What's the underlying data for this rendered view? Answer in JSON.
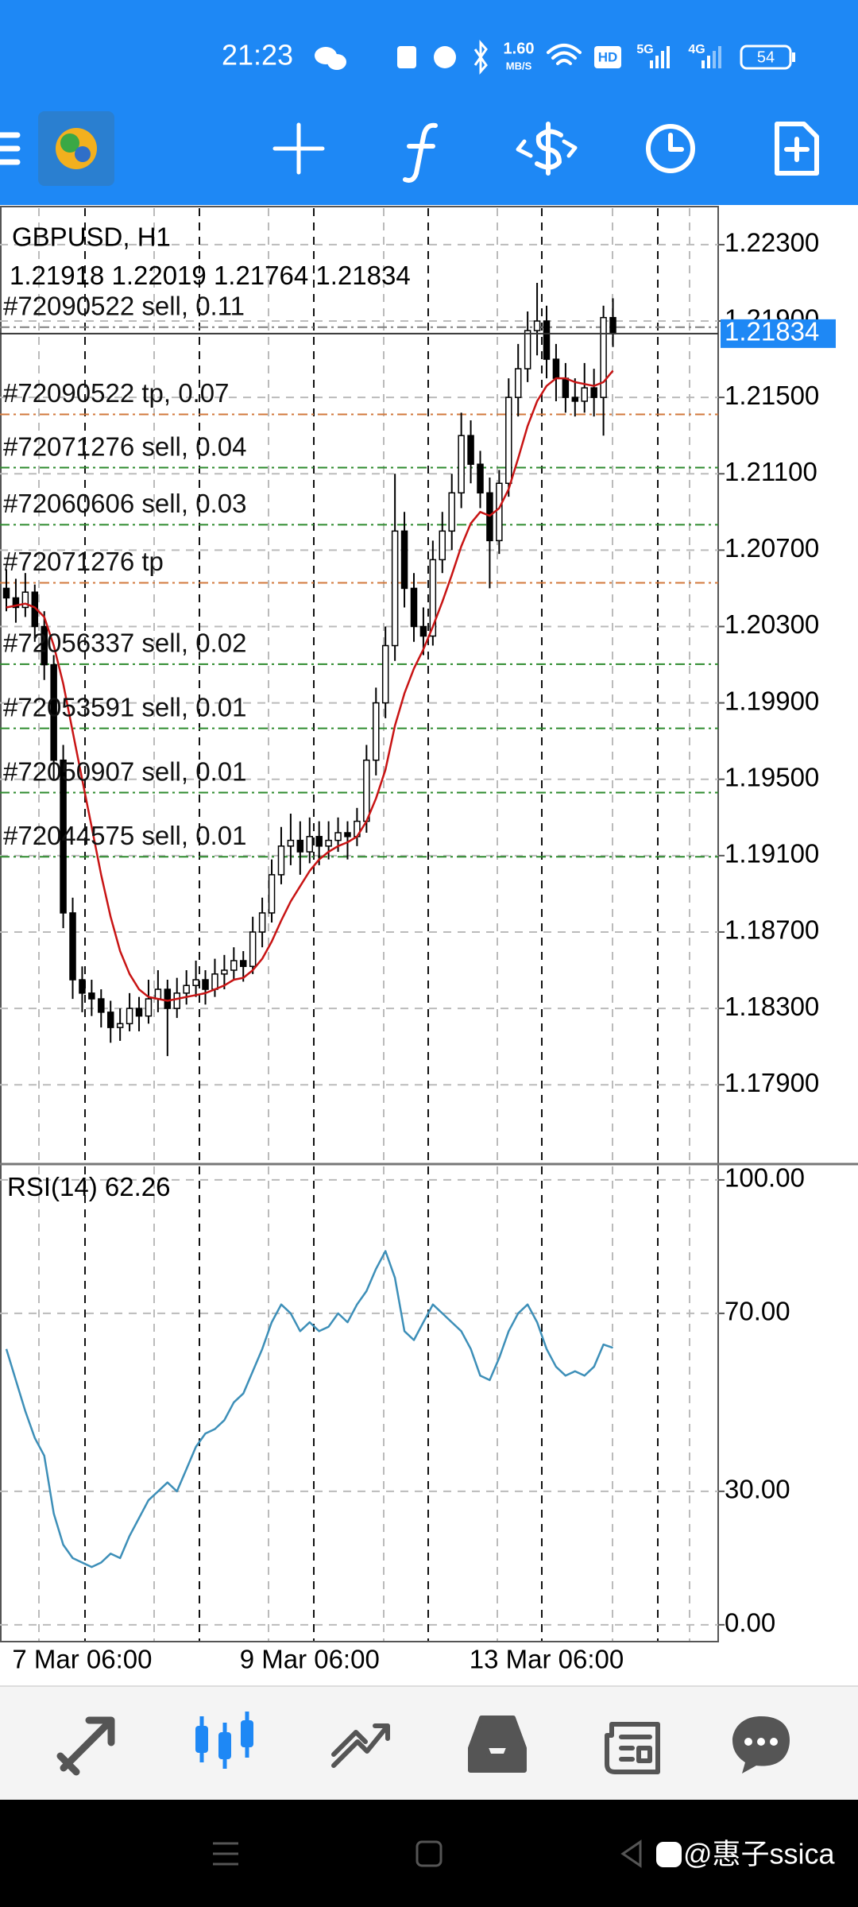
{
  "status_bar": {
    "time": "21:23",
    "network_speed": "1.60",
    "network_unit": "MB/S",
    "hd": "HD",
    "signal_1": "5G",
    "signal_2": "4G",
    "battery": "54"
  },
  "chart": {
    "type": "candlestick",
    "symbol": "GBPUSD, H1",
    "categories": [
      null,
      null,
      null,
      null,
      null,
      null,
      null,
      null,
      "7 Mar 06:00",
      null,
      null,
      null,
      null,
      null,
      null,
      null,
      null,
      null,
      null,
      null,
      null,
      null,
      null,
      null,
      null,
      null,
      null,
      null,
      null,
      null,
      null,
      null,
      "9 Mar 06:00",
      null,
      null,
      null,
      null,
      null,
      null,
      null,
      null,
      null,
      null,
      null,
      null,
      null,
      null,
      null,
      null,
      null,
      null,
      null,
      null,
      null,
      null,
      null,
      null,
      "13 Mar 06:00",
      null,
      null,
      null,
      null,
      null,
      null,
      null
    ],
    "candles": {
      "open": [
        1.205,
        1.2045,
        1.204,
        1.2048,
        1.203,
        1.201,
        1.196,
        1.188,
        1.1845,
        1.1838,
        1.1835,
        1.1828,
        1.182,
        1.1822,
        1.183,
        1.1826,
        1.1835,
        1.184,
        1.183,
        1.1838,
        1.1842,
        1.1845,
        1.184,
        1.1848,
        1.185,
        1.1855,
        1.1852,
        1.187,
        1.188,
        1.19,
        1.1915,
        1.1918,
        1.1912,
        1.192,
        1.1915,
        1.1918,
        1.1922,
        1.192,
        1.1928,
        1.196,
        1.199,
        1.202,
        1.208,
        1.205,
        1.203,
        1.2025,
        1.2065,
        1.208,
        1.21,
        1.213,
        1.2115,
        1.21,
        1.2075,
        1.2105,
        1.215,
        1.2165,
        1.2185,
        1.219,
        1.217,
        1.216,
        1.215,
        1.2148,
        1.2155,
        1.215,
        1.21918
      ],
      "high": [
        1.206,
        1.2055,
        1.2058,
        1.2052,
        1.2038,
        1.2015,
        1.1968,
        1.1888,
        1.1852,
        1.1845,
        1.184,
        1.1834,
        1.183,
        1.1838,
        1.1836,
        1.1845,
        1.185,
        1.1845,
        1.1846,
        1.185,
        1.1855,
        1.185,
        1.1856,
        1.1858,
        1.1862,
        1.186,
        1.1878,
        1.1888,
        1.1908,
        1.1925,
        1.1932,
        1.1928,
        1.193,
        1.1928,
        1.1928,
        1.193,
        1.1928,
        1.1935,
        1.1968,
        1.1998,
        1.203,
        1.211,
        1.209,
        1.2058,
        1.204,
        1.2075,
        1.209,
        1.211,
        1.2142,
        1.2138,
        1.2122,
        1.2108,
        1.2112,
        1.216,
        1.2178,
        1.2195,
        1.221,
        1.2198,
        1.2178,
        1.2168,
        1.216,
        1.2168,
        1.2165,
        1.2198,
        1.22019
      ],
      "low": [
        1.2038,
        1.2032,
        1.2035,
        1.2022,
        1.2002,
        1.195,
        1.1872,
        1.1835,
        1.1828,
        1.1826,
        1.182,
        1.1812,
        1.1813,
        1.1818,
        1.1818,
        1.1822,
        1.1828,
        1.1805,
        1.1825,
        1.1832,
        1.1836,
        1.1832,
        1.1836,
        1.184,
        1.1845,
        1.1844,
        1.1848,
        1.1862,
        1.1875,
        1.1895,
        1.1905,
        1.19,
        1.1906,
        1.1905,
        1.1908,
        1.1912,
        1.1908,
        1.1915,
        1.1922,
        1.1952,
        1.1982,
        1.2012,
        1.204,
        1.2022,
        1.2015,
        1.202,
        1.2058,
        1.207,
        1.2092,
        1.2105,
        1.2092,
        1.205,
        1.2068,
        1.2098,
        1.214,
        1.2158,
        1.2172,
        1.216,
        1.2148,
        1.2142,
        1.214,
        1.2142,
        1.214,
        1.213,
        1.21764
      ],
      "close": [
        1.2045,
        1.204,
        1.2048,
        1.203,
        1.201,
        1.196,
        1.188,
        1.1845,
        1.1838,
        1.1835,
        1.1828,
        1.182,
        1.1822,
        1.183,
        1.1826,
        1.1835,
        1.184,
        1.183,
        1.1838,
        1.1842,
        1.1845,
        1.184,
        1.1848,
        1.185,
        1.1855,
        1.1852,
        1.187,
        1.188,
        1.19,
        1.1915,
        1.1918,
        1.1912,
        1.192,
        1.1915,
        1.1918,
        1.1922,
        1.192,
        1.1928,
        1.196,
        1.199,
        1.202,
        1.208,
        1.205,
        1.203,
        1.2025,
        1.2065,
        1.208,
        1.21,
        1.213,
        1.2115,
        1.21,
        1.2075,
        1.2105,
        1.215,
        1.2165,
        1.2185,
        1.219,
        1.217,
        1.216,
        1.215,
        1.2148,
        1.2155,
        1.215,
        1.21918,
        1.21834
      ]
    },
    "up_color": "#ffffff",
    "down_color": "#000000",
    "ylim": [
      1.17493,
      1.22491
    ],
    "yticks": [
      {
        "value": 1.223,
        "label": "1.22300"
      },
      {
        "value": 1.219,
        "label": "1.21900"
      },
      {
        "value": 1.215,
        "label": "1.21500"
      },
      {
        "value": 1.211,
        "label": "1.21100"
      },
      {
        "value": 1.207,
        "label": "1.20700"
      },
      {
        "value": 1.203,
        "label": "1.20300"
      },
      {
        "value": 1.199,
        "label": "1.19900"
      },
      {
        "value": 1.195,
        "label": "1.19500"
      },
      {
        "value": 1.191,
        "label": "1.19100"
      },
      {
        "value": 1.187,
        "label": "1.18700"
      },
      {
        "value": 1.183,
        "label": "1.18300"
      },
      {
        "value": 1.179,
        "label": "1.17900"
      }
    ],
    "grid": true,
    "current_price_color": "#1e88f5",
    "moving_average": {
      "color": "#c81414",
      "values": [
        1.204,
        1.2041,
        1.2042,
        1.204,
        1.2035,
        1.202,
        1.2,
        1.1975,
        1.195,
        1.1925,
        1.19,
        1.1878,
        1.186,
        1.1848,
        1.184,
        1.1836,
        1.1835,
        1.1834,
        1.1835,
        1.1836,
        1.1837,
        1.1838,
        1.184,
        1.1842,
        1.1845,
        1.1846,
        1.185,
        1.1856,
        1.1865,
        1.1876,
        1.1886,
        1.1894,
        1.1902,
        1.1908,
        1.1912,
        1.1915,
        1.1917,
        1.192,
        1.1928,
        1.194,
        1.1955,
        1.1978,
        1.1995,
        1.2008,
        1.2018,
        1.203,
        1.2043,
        1.2057,
        1.2072,
        1.2084,
        1.209,
        1.2088,
        1.2092,
        1.2102,
        1.2118,
        1.2135,
        1.2148,
        1.2156,
        1.216,
        1.216,
        1.2158,
        1.2157,
        1.2156,
        1.2158,
        1.2164
      ]
    },
    "orders": [
      {
        "label": "#72090522 sell, 0.11",
        "price": 1.21868,
        "color": "#808080"
      },
      {
        "label": "#72090522 tp, 0.07",
        "price": 1.21411,
        "color": "#d2783c"
      },
      {
        "label": "#72071276 sell, 0.04",
        "price": 1.21132,
        "color": "#2e8b2e"
      },
      {
        "label": "#72060606 sell, 0.03",
        "price": 1.20833,
        "color": "#2e8b2e"
      },
      {
        "label": "#72071276 tp",
        "price": 1.20529,
        "color": "#d2783c"
      },
      {
        "label": "#72056337 sell, 0.02",
        "price": 1.20103,
        "color": "#2e8b2e"
      },
      {
        "label": "#72053591 sell, 0.01",
        "price": 1.19767,
        "color": "#2e8b2e"
      },
      {
        "label": "#72050907 sell, 0.01",
        "price": 1.1943,
        "color": "#2e8b2e"
      },
      {
        "label": "#72044575 sell, 0.01",
        "price": 1.19094,
        "color": "#2e8b2e"
      }
    ],
    "rsi": {
      "label": "RSI(14)",
      "color": "#3d8fb8",
      "values": [
        62,
        55,
        48,
        42,
        38,
        25,
        18,
        15,
        14,
        13,
        14,
        16,
        15,
        20,
        24,
        28,
        30,
        32,
        30,
        35,
        40,
        43,
        44,
        46,
        50,
        52,
        57,
        62,
        68,
        72,
        70,
        66,
        68,
        66,
        67,
        70,
        68,
        72,
        75,
        80,
        84,
        78,
        66,
        64,
        68,
        72,
        70,
        68,
        66,
        62,
        56,
        55,
        60,
        66,
        70,
        72,
        68,
        62,
        58,
        56,
        57,
        56,
        58,
        63,
        62.26
      ],
      "ylim": [
        -3.6,
        103.2
      ],
      "yticks": [
        {
          "value": 100,
          "label": "100.00"
        },
        {
          "value": 70,
          "label": "70.00"
        },
        {
          "value": 30,
          "label": "30.00"
        },
        {
          "value": 0,
          "label": "0.00"
        }
      ]
    }
  },
  "watermark": "@惠子ssica"
}
